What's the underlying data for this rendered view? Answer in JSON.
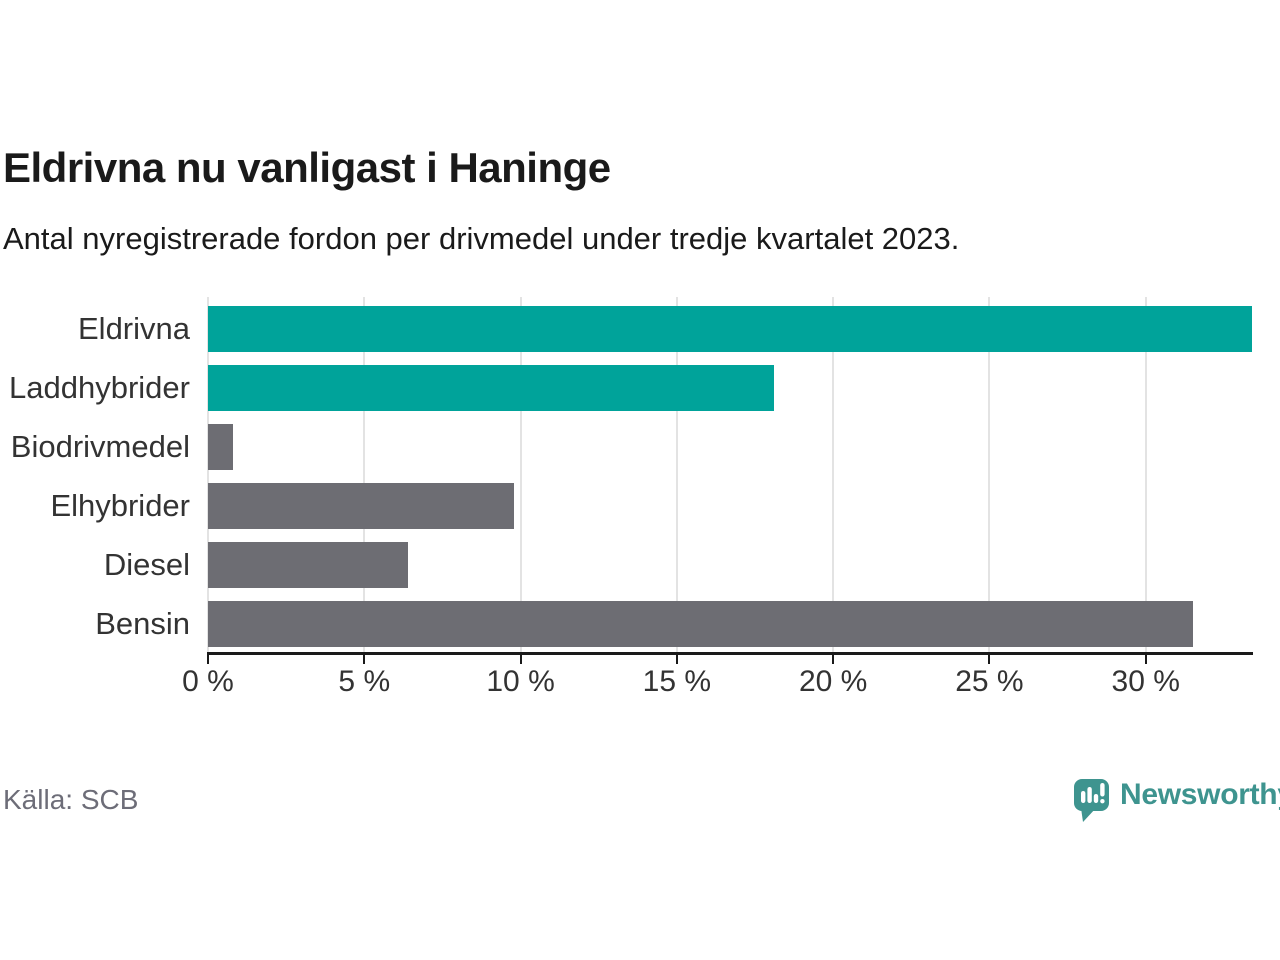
{
  "header": {
    "title": "Eldrivna nu vanligast i Haninge",
    "subtitle": "Antal nyregistrerade fordon per drivmedel under tredje kvartalet 2023."
  },
  "chart_data": {
    "type": "bar",
    "orientation": "horizontal",
    "title": "Eldrivna nu vanligast i Haninge",
    "subtitle": "Antal nyregistrerade fordon per drivmedel under tredje kvartalet 2023.",
    "xlabel": "",
    "ylabel": "",
    "unit": "%",
    "categories": [
      "Eldrivna",
      "Laddhybrider",
      "Biodrivmedel",
      "Elhybrider",
      "Diesel",
      "Bensin"
    ],
    "values": [
      33.4,
      18.1,
      0.8,
      9.8,
      6.4,
      31.5
    ],
    "bar_colors": [
      "#00A39A",
      "#00A39A",
      "#6D6D73",
      "#6D6D73",
      "#6D6D73",
      "#6D6D73"
    ],
    "xlim": [
      0,
      33.4
    ],
    "x_ticks": [
      0,
      5,
      10,
      15,
      20,
      25,
      30
    ],
    "x_tick_labels": [
      "0 %",
      "5 %",
      "10 %",
      "15 %",
      "20 %",
      "25 %",
      "30 %"
    ],
    "grid": true,
    "legend": "none"
  },
  "footer": {
    "source": "Källa: SCB",
    "brand_name": "Newsworthy"
  },
  "colors": {
    "accent_teal": "#00A39A",
    "neutral_gray": "#6D6D73",
    "brand_teal": "#3E948F",
    "gridline": "#E3E3E3",
    "axis": "#1A1A1A",
    "text_dark": "#1A1A1A",
    "text_label": "#333333",
    "text_muted": "#6D6D78",
    "page_bg": "#FFFFFF"
  }
}
